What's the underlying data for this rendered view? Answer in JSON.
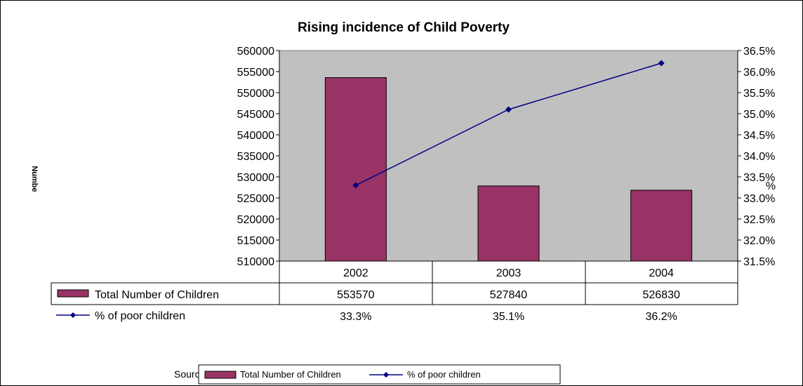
{
  "chart_data": {
    "type": "bar",
    "title": "Rising incidence of Child Poverty",
    "ylabel": "Numbe",
    "y2label": "%",
    "categories": [
      "2002",
      "2003",
      "2004"
    ],
    "series": [
      {
        "name": "Total Number of Children",
        "kind": "bar",
        "axis": "left",
        "color": "#993366",
        "values": [
          553570,
          527840,
          526830
        ],
        "labels": [
          "553570",
          "527840",
          "526830"
        ]
      },
      {
        "name": "% of poor children",
        "kind": "line",
        "axis": "right",
        "color": "#000080",
        "values": [
          33.3,
          35.1,
          36.2
        ],
        "labels": [
          "33.3%",
          "35.1%",
          "36.2%"
        ]
      }
    ],
    "ylim": [
      510000,
      560000
    ],
    "yticks": [
      "510000",
      "515000",
      "520000",
      "525000",
      "530000",
      "535000",
      "540000",
      "545000",
      "550000",
      "555000",
      "560000"
    ],
    "y2lim": [
      31.5,
      36.5
    ],
    "y2ticks": [
      "31.5%",
      "32.0%",
      "32.5%",
      "33.0%",
      "33.5%",
      "34.0%",
      "34.5%",
      "35.0%",
      "35.5%",
      "36.0%",
      "36.5%"
    ],
    "plot_background": "#c0c0c0",
    "data_table": true,
    "legend_position": "bottom",
    "source_text": "Sourc"
  }
}
